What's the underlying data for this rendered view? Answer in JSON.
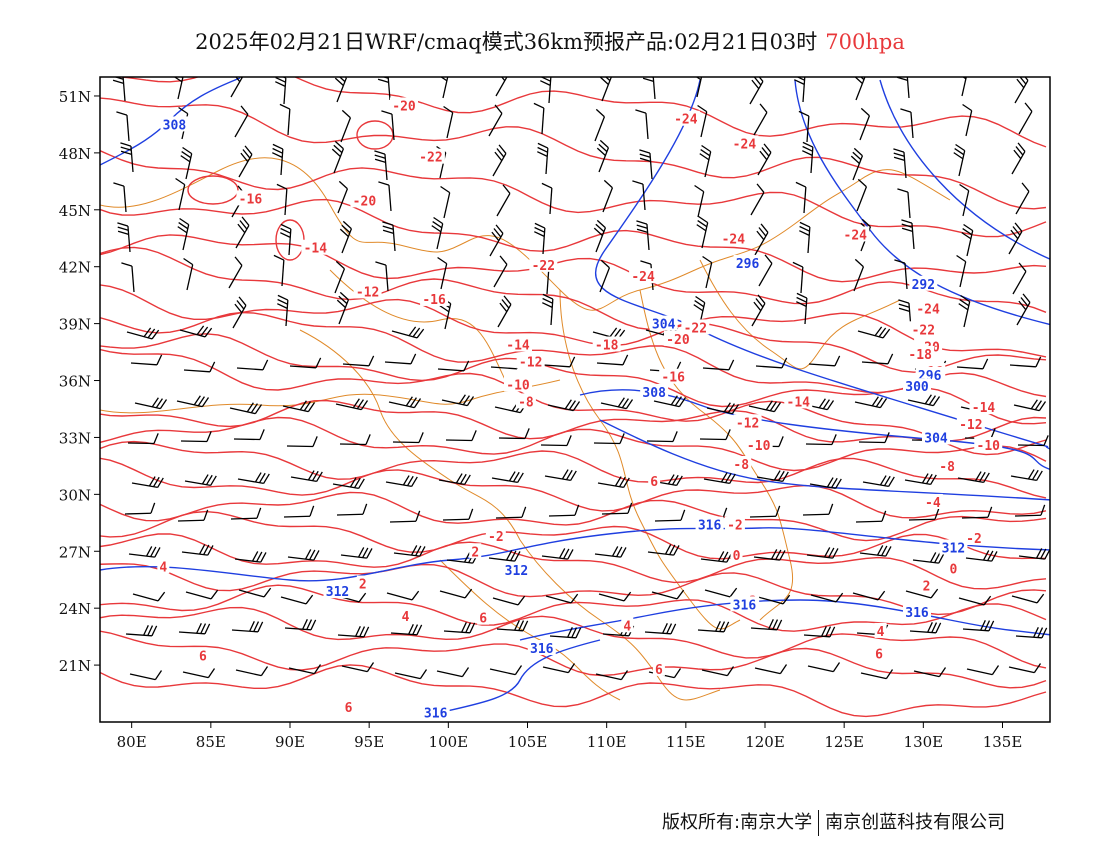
{
  "title": {
    "main": "2025年02月21日WRF/cmaq模式36km预报产品:02月21日03时",
    "level": "700hpa"
  },
  "footer": {
    "left": "版权所有:南京大学",
    "right": "南京创蓝科技有限公司"
  },
  "map": {
    "lon_range": [
      78,
      138
    ],
    "lat_range": [
      18,
      52
    ],
    "lat_labels": [
      "51N",
      "48N",
      "45N",
      "42N",
      "39N",
      "36N",
      "33N",
      "30N",
      "27N",
      "24N",
      "21N"
    ],
    "lat_values": [
      51,
      48,
      45,
      42,
      39,
      36,
      33,
      30,
      27,
      24,
      21
    ],
    "lon_labels": [
      "80E",
      "85E",
      "90E",
      "95E",
      "100E",
      "105E",
      "110E",
      "115E",
      "120E",
      "125E",
      "130E",
      "135E"
    ],
    "lon_values": [
      80,
      85,
      90,
      95,
      100,
      105,
      110,
      115,
      120,
      125,
      130,
      135
    ],
    "colors": {
      "temperature": "#e8383b",
      "height": "#1f3fe0",
      "boundary": "#e08a2a",
      "barb": "#000000",
      "frame": "#000000"
    },
    "temperature_labels": [
      {
        "text": "-20",
        "lon": 97.2,
        "lat": 50.5
      },
      {
        "text": "-22",
        "lon": 98.9,
        "lat": 47.8
      },
      {
        "text": "-16",
        "lon": 87.5,
        "lat": 45.6
      },
      {
        "text": "-20",
        "lon": 94.7,
        "lat": 45.5
      },
      {
        "text": "-14",
        "lon": 91.6,
        "lat": 43.0
      },
      {
        "text": "-12",
        "lon": 94.9,
        "lat": 40.7
      },
      {
        "text": "-16",
        "lon": 99.1,
        "lat": 40.3
      },
      {
        "text": "-22",
        "lon": 106.0,
        "lat": 42.1
      },
      {
        "text": "-24",
        "lon": 115.0,
        "lat": 49.8
      },
      {
        "text": "-24",
        "lon": 118.7,
        "lat": 48.5
      },
      {
        "text": "-24",
        "lon": 118.0,
        "lat": 43.5
      },
      {
        "text": "-24",
        "lon": 112.3,
        "lat": 41.5
      },
      {
        "text": "-24",
        "lon": 125.7,
        "lat": 43.7
      },
      {
        "text": "-24",
        "lon": 130.3,
        "lat": 39.8
      },
      {
        "text": "-22",
        "lon": 130.0,
        "lat": 38.7
      },
      {
        "text": "-20",
        "lon": 130.3,
        "lat": 37.8
      },
      {
        "text": "-18",
        "lon": 129.8,
        "lat": 37.4
      },
      {
        "text": "-16",
        "lon": 130.5,
        "lat": 36.5
      },
      {
        "text": "-14",
        "lon": 133.8,
        "lat": 34.6
      },
      {
        "text": "-12",
        "lon": 133.0,
        "lat": 33.7
      },
      {
        "text": "-10",
        "lon": 134.1,
        "lat": 32.6
      },
      {
        "text": "-8",
        "lon": 131.5,
        "lat": 31.5
      },
      {
        "text": "-4",
        "lon": 130.6,
        "lat": 29.6
      },
      {
        "text": "-2",
        "lon": 133.2,
        "lat": 27.7
      },
      {
        "text": "0",
        "lon": 131.9,
        "lat": 26.1
      },
      {
        "text": "2",
        "lon": 130.2,
        "lat": 25.2
      },
      {
        "text": "4",
        "lon": 127.3,
        "lat": 22.8
      },
      {
        "text": "6",
        "lon": 127.2,
        "lat": 21.6
      },
      {
        "text": "-22",
        "lon": 115.6,
        "lat": 38.8
      },
      {
        "text": "-20",
        "lon": 114.5,
        "lat": 38.2
      },
      {
        "text": "-18",
        "lon": 110.0,
        "lat": 37.9
      },
      {
        "text": "-16",
        "lon": 114.2,
        "lat": 36.2
      },
      {
        "text": "-14",
        "lon": 122.1,
        "lat": 34.9
      },
      {
        "text": "-12",
        "lon": 118.9,
        "lat": 33.8
      },
      {
        "text": "-10",
        "lon": 119.6,
        "lat": 32.6
      },
      {
        "text": "-8",
        "lon": 118.5,
        "lat": 31.6
      },
      {
        "text": "6",
        "lon": 113.0,
        "lat": 30.7
      },
      {
        "text": "-14",
        "lon": 104.4,
        "lat": 37.9
      },
      {
        "text": "-12",
        "lon": 105.2,
        "lat": 37.0
      },
      {
        "text": "-10",
        "lon": 104.4,
        "lat": 35.8
      },
      {
        "text": "-8",
        "lon": 104.9,
        "lat": 34.9
      },
      {
        "text": "-2",
        "lon": 118.1,
        "lat": 28.4
      },
      {
        "text": "-2",
        "lon": 103.0,
        "lat": 27.8
      },
      {
        "text": "2",
        "lon": 101.7,
        "lat": 27.0
      },
      {
        "text": "0",
        "lon": 118.2,
        "lat": 26.8
      },
      {
        "text": "-2",
        "lon": 119.0,
        "lat": 24.4
      },
      {
        "text": "2",
        "lon": 94.6,
        "lat": 25.3
      },
      {
        "text": "4",
        "lon": 82.0,
        "lat": 26.2
      },
      {
        "text": "4",
        "lon": 97.3,
        "lat": 23.6
      },
      {
        "text": "6",
        "lon": 102.2,
        "lat": 23.5
      },
      {
        "text": "4",
        "lon": 111.3,
        "lat": 23.1
      },
      {
        "text": "6",
        "lon": 113.3,
        "lat": 20.8
      },
      {
        "text": "6",
        "lon": 84.5,
        "lat": 21.5
      },
      {
        "text": "6",
        "lon": 93.7,
        "lat": 18.8
      }
    ],
    "height_labels": [
      {
        "text": "308",
        "lon": 82.7,
        "lat": 49.5
      },
      {
        "text": "296",
        "lon": 118.9,
        "lat": 42.2
      },
      {
        "text": "292",
        "lon": 130.0,
        "lat": 41.1
      },
      {
        "text": "304",
        "lon": 113.6,
        "lat": 39.0
      },
      {
        "text": "296",
        "lon": 130.4,
        "lat": 36.3
      },
      {
        "text": "300",
        "lon": 129.6,
        "lat": 35.7
      },
      {
        "text": "308",
        "lon": 113.0,
        "lat": 35.4
      },
      {
        "text": "304",
        "lon": 130.8,
        "lat": 33.0
      },
      {
        "text": "316",
        "lon": 116.5,
        "lat": 28.4
      },
      {
        "text": "312",
        "lon": 131.9,
        "lat": 27.2
      },
      {
        "text": "312",
        "lon": 104.3,
        "lat": 26.0
      },
      {
        "text": "312",
        "lon": 93.0,
        "lat": 24.9
      },
      {
        "text": "316",
        "lon": 118.7,
        "lat": 24.2
      },
      {
        "text": "316",
        "lon": 129.6,
        "lat": 23.8
      },
      {
        "text": "316",
        "lon": 105.9,
        "lat": 21.9
      },
      {
        "text": "316",
        "lon": 99.2,
        "lat": 18.5
      }
    ]
  }
}
